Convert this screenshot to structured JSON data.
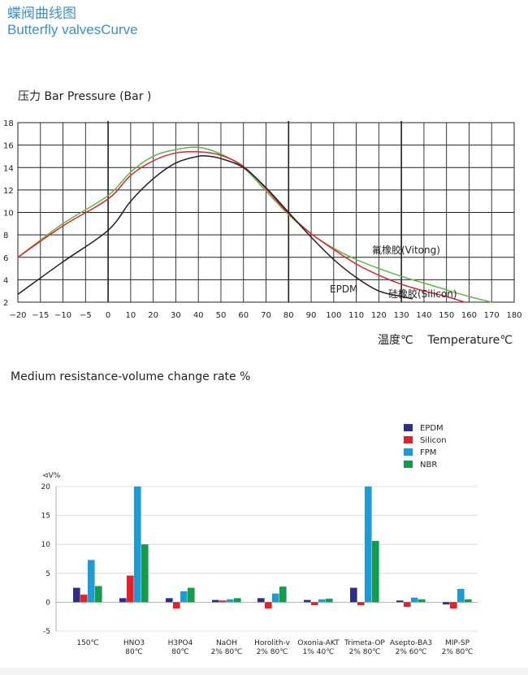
{
  "header": {
    "title_cn": "蝶阀曲线图",
    "title_en": "Butterfly valvesCurve"
  },
  "colors": {
    "title": "#3d8fd0",
    "EPDM": "#2b2f86",
    "Silicon": "#e4202a",
    "FPM": "#1e9bd7",
    "NBR": "#139c4c",
    "curve_black": "#231f20",
    "curve_red": "#e4202a",
    "curve_green": "#5db647"
  },
  "chart_data": [
    {
      "type": "line",
      "title": "压力 Bar  Pressure (Bar )",
      "xlabel": "温度℃    Temperature℃",
      "ylabel": "",
      "xlim": [
        -20,
        180
      ],
      "ylim": [
        2,
        18
      ],
      "x_ticks": [
        "−20",
        "−15",
        "−10",
        "−5",
        "0",
        "10",
        "20",
        "30",
        "40",
        "50",
        "60",
        "70",
        "80",
        "90",
        "100",
        "110",
        "120",
        "130",
        "140",
        "150",
        "160",
        "170",
        "180"
      ],
      "y_ticks": [
        "2",
        "4",
        "6",
        "8",
        "10",
        "12",
        "14",
        "16",
        "18"
      ],
      "grid": true,
      "series": [
        {
          "name": "EPDM",
          "color_key": "curve_black",
          "points": [
            [
              -20,
              2.7
            ],
            [
              -10,
              5.6
            ],
            [
              0,
              8.4
            ],
            [
              10,
              11.0
            ],
            [
              20,
              13.0
            ],
            [
              30,
              14.4
            ],
            [
              40,
              15.0
            ],
            [
              45,
              15.0
            ],
            [
              50,
              14.8
            ],
            [
              60,
              14.0
            ],
            [
              70,
              12.2
            ],
            [
              80,
              10.0
            ],
            [
              90,
              7.8
            ],
            [
              100,
              5.8
            ],
            [
              110,
              4.2
            ],
            [
              120,
              3.0
            ],
            [
              130,
              2.5
            ],
            [
              135,
              2.3
            ]
          ]
        },
        {
          "name": "硅橡胶(Silicon)",
          "color_key": "curve_red",
          "points": [
            [
              -20,
              6.0
            ],
            [
              -10,
              8.8
            ],
            [
              0,
              11.2
            ],
            [
              10,
              13.3
            ],
            [
              20,
              14.6
            ],
            [
              30,
              15.3
            ],
            [
              40,
              15.4
            ],
            [
              50,
              15.1
            ],
            [
              60,
              14.1
            ],
            [
              70,
              12.1
            ],
            [
              80,
              9.9
            ],
            [
              90,
              8.1
            ],
            [
              100,
              6.7
            ],
            [
              110,
              5.4
            ],
            [
              120,
              4.4
            ],
            [
              130,
              3.6
            ],
            [
              140,
              3.0
            ],
            [
              150,
              2.5
            ],
            [
              158,
              2.0
            ]
          ]
        },
        {
          "name": "氟橡胶(Vitong)",
          "color_key": "curve_green",
          "points": [
            [
              -20,
              6.0
            ],
            [
              -10,
              9.0
            ],
            [
              0,
              11.5
            ],
            [
              10,
              13.6
            ],
            [
              20,
              15.0
            ],
            [
              30,
              15.6
            ],
            [
              40,
              15.8
            ],
            [
              50,
              15.2
            ],
            [
              60,
              14.0
            ],
            [
              70,
              11.9
            ],
            [
              80,
              9.8
            ],
            [
              90,
              8.1
            ],
            [
              100,
              6.8
            ],
            [
              110,
              5.8
            ],
            [
              120,
              5.0
            ],
            [
              130,
              4.3
            ],
            [
              140,
              3.7
            ],
            [
              150,
              3.1
            ],
            [
              160,
              2.5
            ],
            [
              170,
              2.0
            ]
          ]
        }
      ],
      "annotations": [
        "氟橡胶(Vitong)",
        "EPDM",
        "硅橡胶(Silicon)"
      ]
    },
    {
      "type": "bar",
      "title": "Medium resistance-volume change rate %",
      "ylabel": "⊲V%",
      "ylim": [
        -5,
        20
      ],
      "y_ticks": [
        "20",
        "15",
        "10",
        "5",
        "0",
        "-5"
      ],
      "categories": [
        [
          "150℃",
          ""
        ],
        [
          "HNO3",
          "80℃"
        ],
        [
          "H3PO4",
          "80℃"
        ],
        [
          "NaOH",
          "2% 80℃"
        ],
        [
          "Horolith-v",
          "2% 80℃"
        ],
        [
          "Oxonia-AKT",
          "1% 40℃"
        ],
        [
          "Trimeta-OP",
          "2% 80℃"
        ],
        [
          "Asepto-BA3",
          "2% 60℃"
        ],
        [
          "MIP-SP",
          "2% 80℃"
        ]
      ],
      "legend_position": "top-right",
      "series": [
        {
          "name": "EPDM",
          "values": [
            2.5,
            0.7,
            0.7,
            0.4,
            0.7,
            0.4,
            2.5,
            0.3,
            -0.4
          ]
        },
        {
          "name": "Silicon",
          "values": [
            1.3,
            4.6,
            -1.1,
            0.3,
            -1.1,
            -0.5,
            -0.5,
            -0.8,
            -1.1
          ]
        },
        {
          "name": "FPM",
          "values": [
            7.3,
            20,
            1.9,
            0.5,
            1.5,
            0.5,
            20,
            0.8,
            2.3
          ]
        },
        {
          "name": "NBR",
          "values": [
            2.8,
            10,
            2.5,
            0.7,
            2.7,
            0.6,
            10.6,
            0.5,
            0.5
          ]
        }
      ]
    }
  ]
}
